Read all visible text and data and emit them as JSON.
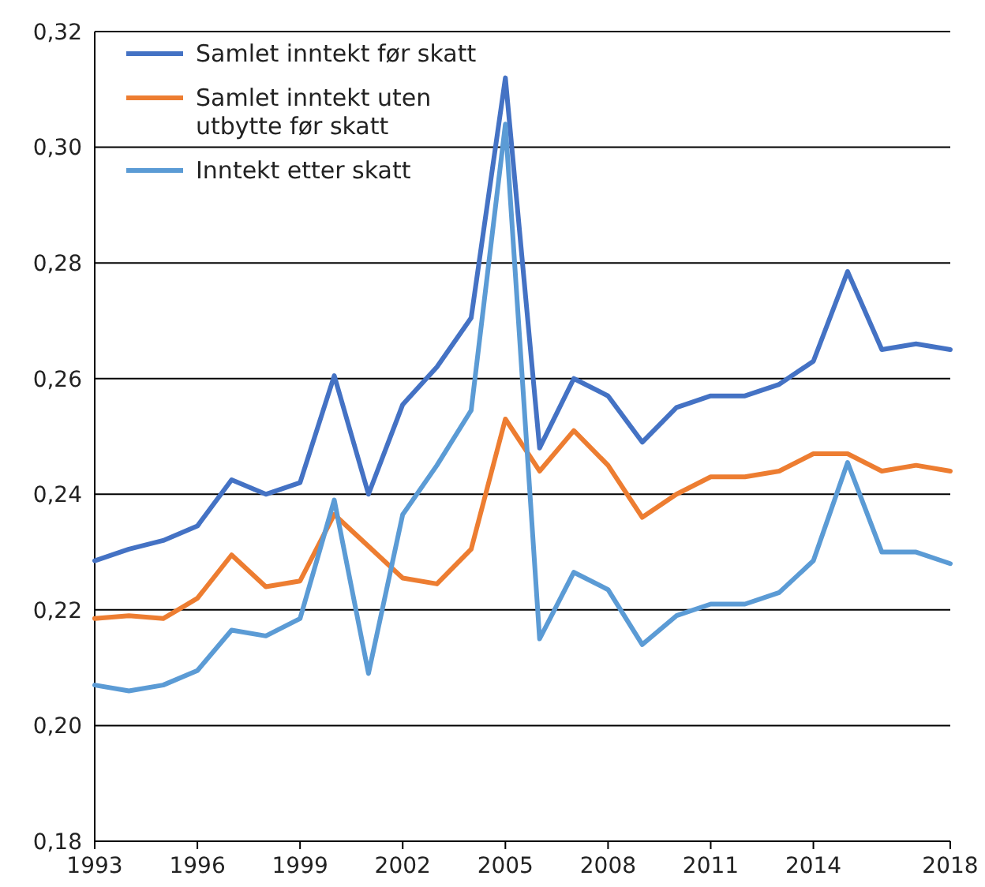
{
  "chart_data": {
    "type": "line",
    "x": [
      1993,
      1994,
      1995,
      1996,
      1997,
      1998,
      1999,
      2000,
      2001,
      2002,
      2003,
      2004,
      2005,
      2006,
      2007,
      2008,
      2009,
      2010,
      2011,
      2012,
      2013,
      2014,
      2015,
      2016,
      2017,
      2018
    ],
    "series": [
      {
        "name": "Samlet inntekt før skatt",
        "color": "#4472c4",
        "values": [
          0.2285,
          0.2305,
          0.232,
          0.2345,
          0.2425,
          0.24,
          0.242,
          0.2605,
          0.24,
          0.2555,
          0.262,
          0.2705,
          0.312,
          0.248,
          0.26,
          0.257,
          0.249,
          0.255,
          0.257,
          0.257,
          0.259,
          0.263,
          0.2785,
          0.265,
          0.266,
          0.265
        ]
      },
      {
        "name": "Samlet inntekt uten utbytte før skatt",
        "color": "#ed7d31",
        "values": [
          0.2185,
          0.219,
          0.2185,
          0.222,
          0.2295,
          0.224,
          0.225,
          0.2365,
          0.231,
          0.2255,
          0.2245,
          0.2305,
          0.253,
          0.244,
          0.251,
          0.245,
          0.236,
          0.24,
          0.243,
          0.243,
          0.244,
          0.247,
          0.247,
          0.244,
          0.245,
          0.244
        ]
      },
      {
        "name": "Inntekt etter skatt",
        "color": "#5b9bd5",
        "values": [
          0.207,
          0.206,
          0.207,
          0.2095,
          0.2165,
          0.2155,
          0.2185,
          0.239,
          0.209,
          0.2365,
          0.245,
          0.2545,
          0.304,
          0.215,
          0.2265,
          0.2235,
          0.214,
          0.219,
          0.221,
          0.221,
          0.223,
          0.2285,
          0.2455,
          0.23,
          0.23,
          0.228
        ]
      }
    ],
    "xlim": [
      1993,
      2018
    ],
    "xticks": [
      1993,
      1996,
      1999,
      2002,
      2005,
      2008,
      2011,
      2014,
      2018
    ],
    "ylim": [
      0.18,
      0.32
    ],
    "yticks": [
      {
        "value": 0.18,
        "label": "0,18"
      },
      {
        "value": 0.2,
        "label": "0,20"
      },
      {
        "value": 0.22,
        "label": "0,22"
      },
      {
        "value": 0.24,
        "label": "0,24"
      },
      {
        "value": 0.26,
        "label": "0,26"
      },
      {
        "value": 0.28,
        "label": "0,28"
      },
      {
        "value": 0.3,
        "label": "0,30"
      },
      {
        "value": 0.32,
        "label": "0,32"
      }
    ],
    "grid": "y",
    "legend": "top left",
    "line_style": "solid"
  }
}
